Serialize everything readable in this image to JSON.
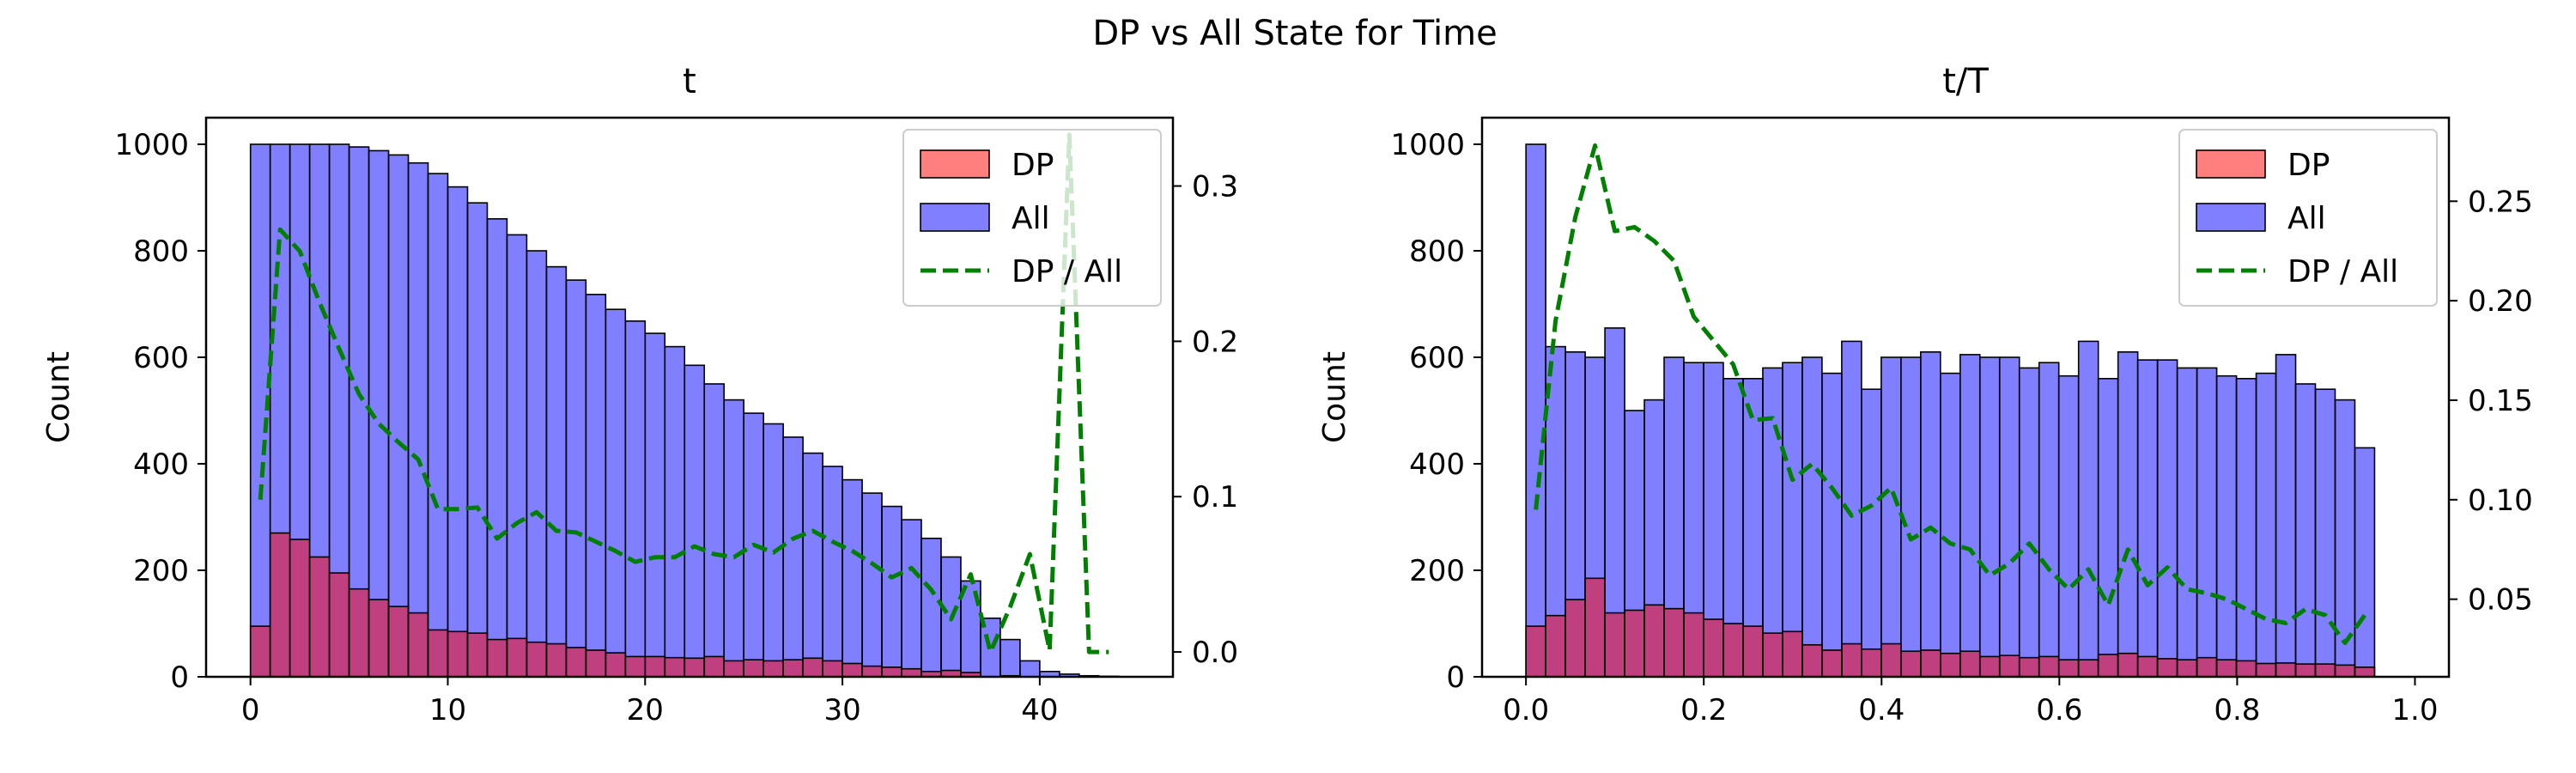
{
  "figure": {
    "title": "DP vs All State for Time"
  },
  "chart_data": [
    {
      "type": "histogram",
      "title": "t",
      "ylabel": "Count",
      "y2label": "",
      "xlim": [
        -2.25,
        46.75
      ],
      "xticks": [
        0,
        10,
        20,
        30,
        40
      ],
      "ylim": [
        0,
        1050
      ],
      "yticks": [
        0,
        200,
        400,
        600,
        800,
        1000
      ],
      "y2lim": [
        -0.016,
        0.344
      ],
      "y2ticks": [
        0.0,
        0.1,
        0.2,
        0.3
      ],
      "y2ticklabels": [
        "0.0",
        "0.1",
        "0.2",
        "0.3"
      ],
      "legend": {
        "position": "top-right",
        "entries": [
          "DP",
          "All",
          "DP / All"
        ]
      },
      "bin_width": 1,
      "bin_starts": [
        0,
        1,
        2,
        3,
        4,
        5,
        6,
        7,
        8,
        9,
        10,
        11,
        12,
        13,
        14,
        15,
        16,
        17,
        18,
        19,
        20,
        21,
        22,
        23,
        24,
        25,
        26,
        27,
        28,
        29,
        30,
        31,
        32,
        33,
        34,
        35,
        36,
        37,
        38,
        39,
        40,
        41,
        42,
        43,
        44
      ],
      "series": [
        {
          "name": "All",
          "color": "#0000ff",
          "alpha": 0.5,
          "values": [
            1000,
            1000,
            1000,
            1000,
            1000,
            995,
            988,
            980,
            965,
            945,
            920,
            890,
            860,
            830,
            800,
            770,
            745,
            718,
            690,
            668,
            645,
            620,
            585,
            550,
            520,
            495,
            475,
            450,
            420,
            395,
            370,
            345,
            320,
            295,
            260,
            225,
            180,
            110,
            70,
            30,
            10,
            5,
            2,
            1,
            0
          ]
        },
        {
          "name": "DP",
          "color": "#ff0000",
          "alpha": 0.5,
          "values": [
            95,
            270,
            258,
            225,
            195,
            165,
            145,
            132,
            120,
            88,
            85,
            82,
            70,
            72,
            65,
            62,
            55,
            50,
            45,
            38,
            38,
            36,
            35,
            38,
            30,
            32,
            30,
            32,
            35,
            30,
            25,
            20,
            18,
            15,
            10,
            12,
            8,
            0,
            2,
            0,
            0,
            0,
            0,
            0,
            0
          ]
        },
        {
          "name": "DP / All",
          "color": "#008000",
          "style": "dashed",
          "x": [
            0,
            1,
            2,
            3,
            4,
            5,
            6,
            7,
            8,
            9,
            10,
            11,
            12,
            13,
            14,
            15,
            16,
            17,
            18,
            19,
            20,
            21,
            22,
            23,
            24,
            25,
            26,
            27,
            28,
            29,
            30,
            31,
            32,
            33,
            34,
            35,
            36,
            37,
            38,
            39,
            40,
            41,
            42,
            43
          ],
          "values": [
            0.098,
            0.272,
            0.258,
            0.225,
            0.195,
            0.166,
            0.147,
            0.135,
            0.124,
            0.092,
            0.092,
            0.093,
            0.073,
            0.083,
            0.09,
            0.078,
            0.077,
            0.071,
            0.065,
            0.058,
            0.061,
            0.061,
            0.068,
            0.063,
            0.061,
            0.069,
            0.064,
            0.073,
            0.078,
            0.071,
            0.065,
            0.057,
            0.048,
            0.054,
            0.04,
            0.021,
            0.05,
            0.0,
            0.029,
            0.063,
            0.001,
            0.333,
            0.0,
            0.0
          ]
        }
      ]
    },
    {
      "type": "histogram",
      "title": "t/T",
      "ylabel": "Count",
      "y2label": "",
      "xlim": [
        -0.0494,
        1.0382
      ],
      "xticks": [
        0.0,
        0.2,
        0.4,
        0.6,
        0.8,
        1.0
      ],
      "xticklabels": [
        "0.0",
        "0.2",
        "0.4",
        "0.6",
        "0.8",
        "1.0"
      ],
      "ylim": [
        0,
        1050
      ],
      "yticks": [
        0,
        200,
        400,
        600,
        800,
        1000
      ],
      "y2lim": [
        0.011,
        0.292
      ],
      "y2ticks": [
        0.05,
        0.1,
        0.15,
        0.2,
        0.25
      ],
      "y2ticklabels": [
        "0.05",
        "0.10",
        "0.15",
        "0.20",
        "0.25"
      ],
      "legend": {
        "position": "top-right",
        "entries": [
          "DP",
          "All",
          "DP / All"
        ]
      },
      "bin_width": 0.0222,
      "bin_starts": [
        0.0,
        0.0222,
        0.0444,
        0.0666,
        0.0888,
        0.111,
        0.1332,
        0.1554,
        0.1776,
        0.1998,
        0.222,
        0.2442,
        0.2664,
        0.2886,
        0.3108,
        0.333,
        0.3552,
        0.3774,
        0.3996,
        0.4218,
        0.444,
        0.4662,
        0.4884,
        0.5106,
        0.5328,
        0.555,
        0.5772,
        0.5994,
        0.6216,
        0.6438,
        0.666,
        0.6882,
        0.7104,
        0.7326,
        0.7548,
        0.777,
        0.7992,
        0.8214,
        0.8436,
        0.8658,
        0.888,
        0.9102,
        0.9324
      ],
      "series": [
        {
          "name": "All",
          "color": "#0000ff",
          "alpha": 0.5,
          "values": [
            1000,
            620,
            610,
            600,
            655,
            500,
            520,
            600,
            590,
            590,
            560,
            560,
            580,
            590,
            600,
            570,
            630,
            540,
            600,
            600,
            610,
            570,
            605,
            600,
            600,
            580,
            590,
            565,
            630,
            560,
            610,
            595,
            595,
            580,
            580,
            565,
            560,
            570,
            605,
            550,
            540,
            520,
            430
          ]
        },
        {
          "name": "DP",
          "color": "#ff0000",
          "alpha": 0.5,
          "values": [
            95,
            115,
            145,
            185,
            120,
            125,
            135,
            128,
            120,
            108,
            100,
            95,
            82,
            85,
            60,
            50,
            62,
            52,
            62,
            48,
            50,
            44,
            48,
            38,
            40,
            36,
            38,
            32,
            32,
            42,
            44,
            38,
            34,
            32,
            36,
            32,
            30,
            25,
            26,
            24,
            24,
            22,
            18
          ]
        },
        {
          "name": "DP / All",
          "color": "#008000",
          "style": "dashed",
          "x": [
            0.0,
            0.0222,
            0.0444,
            0.0666,
            0.0888,
            0.111,
            0.1332,
            0.1554,
            0.1776,
            0.1998,
            0.222,
            0.2442,
            0.2664,
            0.2886,
            0.3108,
            0.333,
            0.3552,
            0.3774,
            0.3996,
            0.4218,
            0.444,
            0.4662,
            0.4884,
            0.5106,
            0.5328,
            0.555,
            0.5772,
            0.5994,
            0.6216,
            0.6438,
            0.666,
            0.6882,
            0.7104,
            0.7326,
            0.7548,
            0.777,
            0.7992,
            0.8214,
            0.8436,
            0.8658,
            0.888,
            0.9102,
            0.9324
          ],
          "values": [
            0.095,
            0.19,
            0.242,
            0.278,
            0.235,
            0.237,
            0.23,
            0.22,
            0.192,
            0.18,
            0.168,
            0.14,
            0.141,
            0.11,
            0.118,
            0.106,
            0.092,
            0.097,
            0.106,
            0.08,
            0.086,
            0.078,
            0.075,
            0.062,
            0.068,
            0.078,
            0.065,
            0.055,
            0.065,
            0.047,
            0.075,
            0.057,
            0.066,
            0.055,
            0.053,
            0.05,
            0.045,
            0.04,
            0.038,
            0.045,
            0.042,
            0.028,
            0.042
          ]
        }
      ]
    }
  ]
}
